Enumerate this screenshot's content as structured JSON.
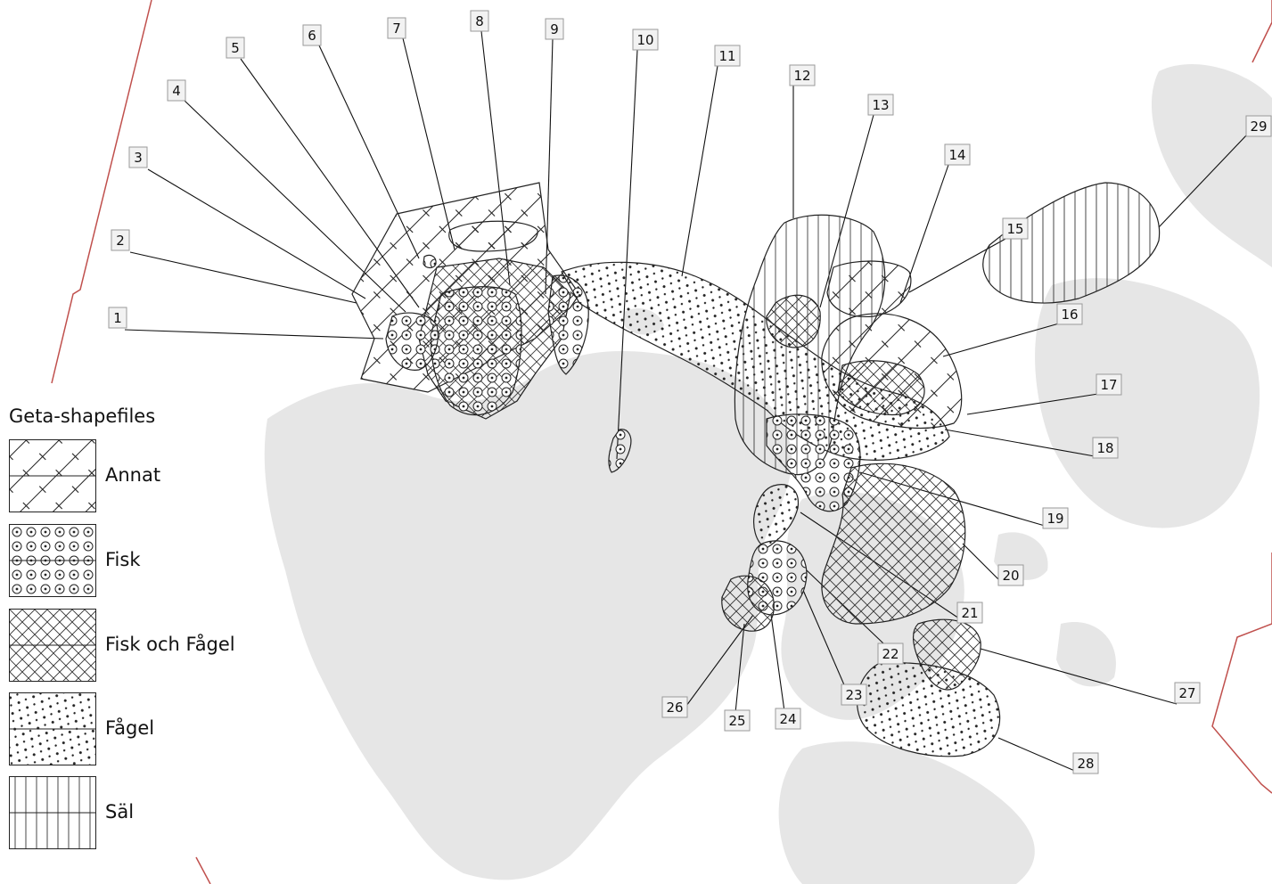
{
  "legend": {
    "title": "Geta-shapefiles",
    "items": [
      {
        "label": "Annat",
        "pattern": "annat"
      },
      {
        "label": "Fisk",
        "pattern": "fisk"
      },
      {
        "label": "Fisk och Fågel",
        "pattern": "fiskfagel"
      },
      {
        "label": "Fågel",
        "pattern": "fagel"
      },
      {
        "label": "Säl",
        "pattern": "sal"
      }
    ]
  },
  "map": {
    "labels": [
      "1",
      "2",
      "3",
      "4",
      "5",
      "6",
      "7",
      "8",
      "9",
      "10",
      "11",
      "12",
      "13",
      "14",
      "15",
      "16",
      "17",
      "18",
      "19",
      "20",
      "21",
      "22",
      "23",
      "24",
      "25",
      "26",
      "27",
      "28",
      "29"
    ],
    "colors": {
      "land": "#e6e6e6",
      "boundary": "#c0504d",
      "outline": "#222222",
      "label_bg": "#f2f2f2"
    }
  }
}
